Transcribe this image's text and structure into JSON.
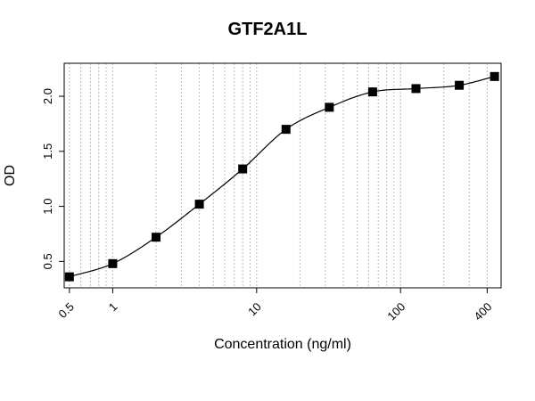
{
  "chart_data": {
    "type": "scatter",
    "title": "GTF2A1L",
    "xlabel": "Concentration (ng/ml)",
    "ylabel": "OD",
    "x_scale": "log10",
    "xlim": [
      0.46,
      500
    ],
    "ylim": [
      0.26,
      2.3
    ],
    "x_ticks": [
      0.5,
      1,
      10,
      100,
      400
    ],
    "x_tick_labels": [
      "0.5",
      "1",
      "10",
      "100",
      "400"
    ],
    "y_ticks": [
      0.5,
      1.0,
      1.5,
      2.0
    ],
    "y_tick_labels": [
      "0.5",
      "1.0",
      "1.5",
      "2.0"
    ],
    "x_gridlines": [
      0.5,
      0.6,
      0.7,
      0.8,
      0.9,
      1,
      2,
      3,
      4,
      5,
      6,
      7,
      8,
      9,
      10,
      20,
      30,
      40,
      50,
      60,
      70,
      80,
      90,
      100,
      200,
      300,
      400
    ],
    "grid": "vertical dotted at log minor ticks",
    "legend": "none",
    "series": [
      {
        "x": [
          0.5,
          1,
          2,
          4,
          8,
          16,
          32,
          64,
          128,
          256,
          450
        ],
        "y": [
          0.36,
          0.48,
          0.72,
          1.02,
          1.34,
          1.7,
          1.9,
          2.04,
          2.07,
          2.1,
          2.18
        ],
        "marker": "square",
        "fit": "4PL curve"
      }
    ]
  }
}
